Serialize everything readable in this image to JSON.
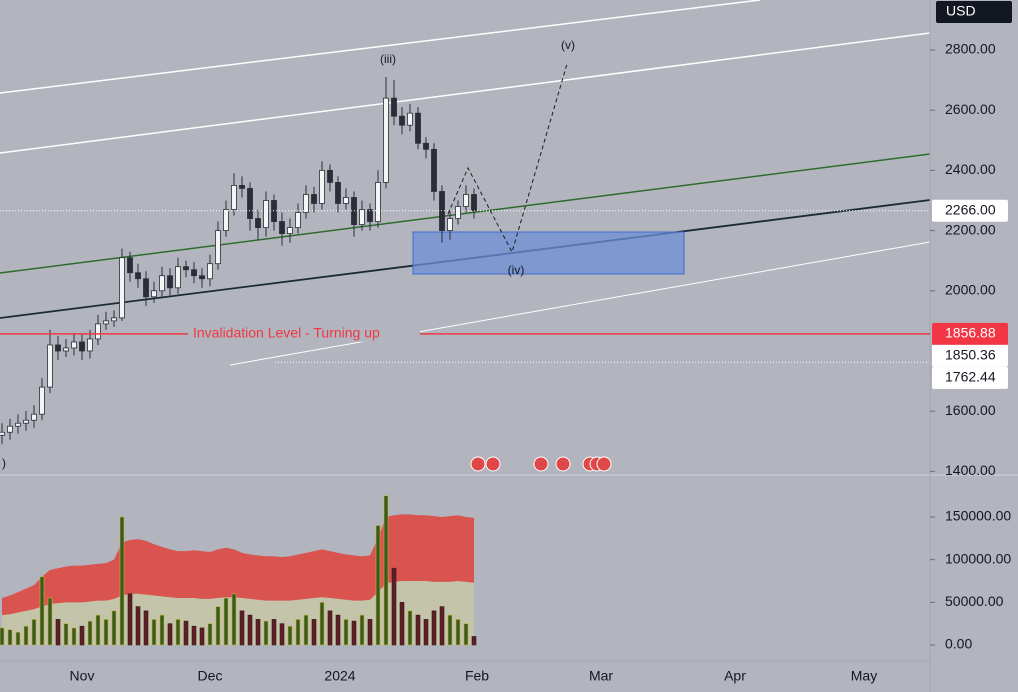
{
  "chart_data": [
    {
      "type": "candlestick",
      "currency": "USD",
      "ylim": [
        1388,
        2966
      ],
      "yticks": [
        {
          "value": 1400,
          "label": "1400.00"
        },
        {
          "value": 1600,
          "label": "1600.00"
        },
        {
          "value": 2000,
          "label": "2000.00"
        },
        {
          "value": 2200,
          "label": "2200.00"
        },
        {
          "value": 2400,
          "label": "2400.00"
        },
        {
          "value": 2600,
          "label": "2600.00"
        },
        {
          "value": 2800,
          "label": "2800.00"
        }
      ],
      "open": [
        1520,
        1530,
        1550,
        1560,
        1570,
        1590,
        1680,
        1820,
        1800,
        1810,
        1830,
        1800,
        1840,
        1890,
        1900,
        1910,
        2110,
        2060,
        2040,
        1980,
        2000,
        2050,
        2010,
        2080,
        2070,
        2050,
        2040,
        2090,
        2200,
        2270,
        2350,
        2340,
        2240,
        2210,
        2300,
        2230,
        2190,
        2210,
        2260,
        2320,
        2290,
        2400,
        2360,
        2290,
        2310,
        2220,
        2270,
        2230,
        2360,
        2640,
        2580,
        2550,
        2590,
        2490,
        2470,
        2330,
        2200,
        2240,
        2280,
        2320
      ],
      "high": [
        1560,
        1575,
        1590,
        1600,
        1620,
        1710,
        1870,
        1850,
        1840,
        1860,
        1855,
        1870,
        1920,
        1930,
        1935,
        2140,
        2130,
        2090,
        2065,
        2030,
        2080,
        2075,
        2110,
        2100,
        2095,
        2075,
        2120,
        2230,
        2300,
        2390,
        2380,
        2360,
        2270,
        2330,
        2320,
        2260,
        2240,
        2290,
        2350,
        2345,
        2430,
        2420,
        2380,
        2340,
        2330,
        2300,
        2290,
        2400,
        2710,
        2700,
        2610,
        2620,
        2610,
        2510,
        2490,
        2350,
        2270,
        2300,
        2350,
        2340
      ],
      "low": [
        1490,
        1505,
        1525,
        1535,
        1545,
        1570,
        1660,
        1770,
        1780,
        1785,
        1770,
        1775,
        1820,
        1870,
        1880,
        1900,
        2030,
        2010,
        1950,
        1960,
        1980,
        1985,
        1990,
        2045,
        2025,
        2010,
        2015,
        2070,
        2180,
        2250,
        2310,
        2200,
        2170,
        2180,
        2200,
        2150,
        2160,
        2190,
        2240,
        2260,
        2270,
        2330,
        2260,
        2270,
        2180,
        2200,
        2200,
        2210,
        2340,
        2550,
        2520,
        2530,
        2470,
        2440,
        2300,
        2160,
        2170,
        2220,
        2260,
        2240
      ],
      "close": [
        1530,
        1550,
        1560,
        1570,
        1590,
        1680,
        1820,
        1800,
        1810,
        1830,
        1800,
        1840,
        1890,
        1900,
        1910,
        2110,
        2060,
        2040,
        1980,
        2000,
        2050,
        2010,
        2080,
        2070,
        2050,
        2040,
        2090,
        2200,
        2270,
        2350,
        2340,
        2240,
        2210,
        2300,
        2230,
        2190,
        2210,
        2260,
        2320,
        2290,
        2400,
        2360,
        2290,
        2310,
        2220,
        2270,
        2230,
        2360,
        2640,
        2580,
        2550,
        2590,
        2490,
        2470,
        2330,
        2200,
        2240,
        2280,
        2320,
        2266
      ],
      "up_color": "#f5f5f5",
      "down_color": "#2a2e39",
      "price_labels": [
        {
          "value": 2266,
          "label": "2266.00",
          "color": "#ffffff",
          "text_color": "#131722"
        },
        {
          "value": 1856.88,
          "label": "1856.88",
          "color": "#f23645",
          "text_color": "#ffffff"
        },
        {
          "value": 1850.36,
          "label": "1850.36",
          "color": "#ffffff",
          "text_color": "#131722"
        },
        {
          "value": 1762.44,
          "label": "1762.44",
          "color": "#ffffff",
          "text_color": "#131722"
        }
      ],
      "invalidation_text": "Invalidation Level - Turning up",
      "wave_labels": [
        "(iii)",
        "(iv)",
        "(v)",
        ")"
      ]
    },
    {
      "type": "volume",
      "ylim": [
        -17600,
        195700
      ],
      "yticks": [
        {
          "value": 0,
          "label": "0.00"
        },
        {
          "value": 50000,
          "label": "50000.00"
        },
        {
          "value": 100000,
          "label": "100000.00"
        },
        {
          "value": 150000,
          "label": "150000.00"
        }
      ],
      "values": [
        20000,
        18000,
        15000,
        22000,
        30000,
        80000,
        55000,
        30000,
        25000,
        20000,
        22000,
        28000,
        35000,
        30000,
        40000,
        150000,
        60000,
        45000,
        40000,
        30000,
        35000,
        25000,
        30000,
        28000,
        22000,
        20000,
        25000,
        45000,
        55000,
        60000,
        40000,
        35000,
        30000,
        28000,
        30000,
        25000,
        22000,
        30000,
        35000,
        30000,
        50000,
        40000,
        35000,
        30000,
        28000,
        35000,
        30000,
        140000,
        175000,
        90000,
        50000,
        40000,
        35000,
        30000,
        40000,
        45000,
        35000,
        30000,
        25000,
        10000
      ],
      "up_color": "#3b5a1f",
      "down_color": "#5c1f24",
      "bands": [
        {
          "color": "#d9534f",
          "values": [
            55000,
            58000,
            62000,
            66000,
            70000,
            80000,
            88000,
            90000,
            92000,
            93000,
            93000,
            94000,
            95000,
            96000,
            100000,
            120000,
            123000,
            124000,
            122000,
            118000,
            115000,
            112000,
            110000,
            110000,
            111000,
            110000,
            109000,
            112000,
            114000,
            112000,
            108000,
            106000,
            105000,
            104000,
            104000,
            103000,
            104000,
            106000,
            108000,
            110000,
            112000,
            110000,
            108000,
            106000,
            105000,
            104000,
            105000,
            125000,
            150000,
            152000,
            153000,
            153000,
            152000,
            152000,
            151000,
            150000,
            151000,
            152000,
            150000,
            149000
          ]
        },
        {
          "color": "#c3c4a9",
          "values": [
            35000,
            36000,
            38000,
            40000,
            42000,
            45000,
            48000,
            49000,
            50000,
            50000,
            50000,
            51000,
            52000,
            52000,
            54000,
            58000,
            60000,
            60000,
            59000,
            58000,
            57000,
            56000,
            55000,
            55000,
            55000,
            54000,
            54000,
            55000,
            56000,
            56000,
            55000,
            54000,
            53000,
            52000,
            52000,
            52000,
            52000,
            53000,
            54000,
            55000,
            56000,
            55000,
            54000,
            53000,
            52000,
            52000,
            53000,
            62000,
            72000,
            74000,
            75000,
            75000,
            75000,
            75000,
            74000,
            74000,
            74000,
            75000,
            74000,
            73000
          ]
        }
      ],
      "xtick_labels": [
        "Nov",
        "Dec",
        "2024",
        "Feb",
        "Mar",
        "Apr",
        "May"
      ]
    }
  ]
}
